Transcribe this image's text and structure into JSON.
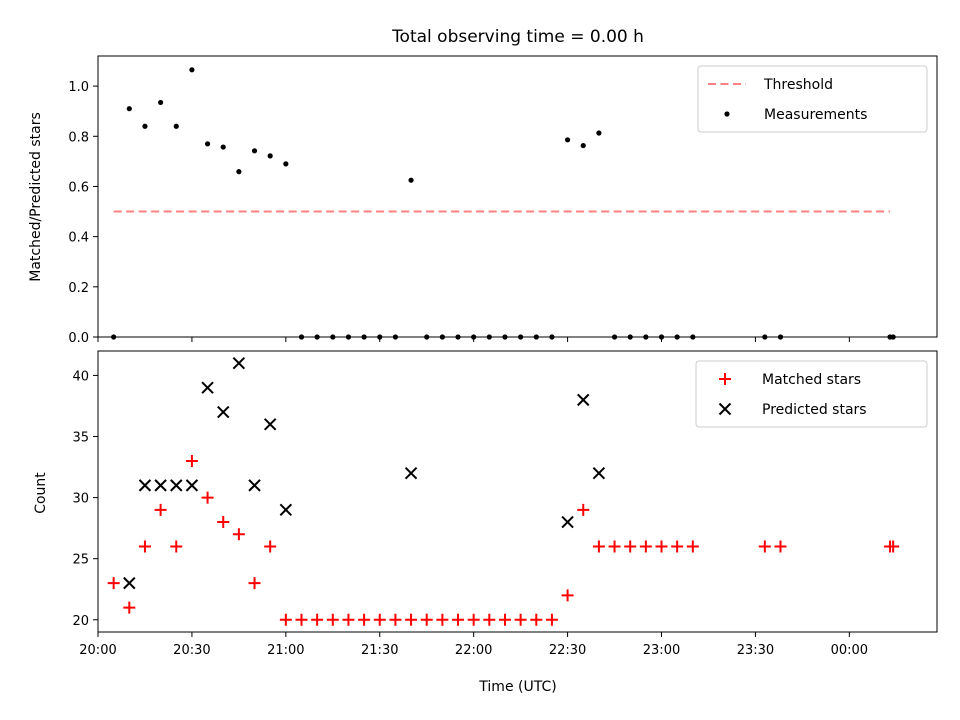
{
  "chart_data": [
    {
      "type": "scatter",
      "title": "Total observing time = 0.00 h",
      "xlabel": "",
      "ylabel": "Matched/Predicted stars",
      "xlim": [
        "20:00",
        "00:28"
      ],
      "ylim": [
        0,
        1.12
      ],
      "yticks": [
        0.0,
        0.2,
        0.4,
        0.6,
        0.8,
        1.0
      ],
      "ytick_labels": [
        "0.0",
        "0.2",
        "0.4",
        "0.6",
        "0.8",
        "1.0"
      ],
      "legend": {
        "placement": "upper right"
      },
      "threshold": {
        "name": "Threshold",
        "value": 0.5,
        "x_start": "20:05",
        "x_end": "00:13",
        "color": "#ff8080",
        "style": "dashed"
      },
      "series": [
        {
          "name": "Measurements",
          "marker": "dot",
          "color": "#000000",
          "points": [
            [
              "20:05",
              0.0
            ],
            [
              "20:10",
              0.91
            ],
            [
              "20:15",
              0.84
            ],
            [
              "20:20",
              0.935
            ],
            [
              "20:25",
              0.84
            ],
            [
              "20:30",
              1.065
            ],
            [
              "20:35",
              0.77
            ],
            [
              "20:40",
              0.757
            ],
            [
              "20:45",
              0.659
            ],
            [
              "20:50",
              0.742
            ],
            [
              "20:55",
              0.722
            ],
            [
              "21:00",
              0.69
            ],
            [
              "21:05",
              0.0
            ],
            [
              "21:10",
              0.0
            ],
            [
              "21:15",
              0.0
            ],
            [
              "21:20",
              0.0
            ],
            [
              "21:25",
              0.0
            ],
            [
              "21:30",
              0.0
            ],
            [
              "21:35",
              0.0
            ],
            [
              "21:40",
              0.625
            ],
            [
              "21:45",
              0.0
            ],
            [
              "21:50",
              0.0
            ],
            [
              "21:55",
              0.0
            ],
            [
              "22:00",
              0.0
            ],
            [
              "22:05",
              0.0
            ],
            [
              "22:10",
              0.0
            ],
            [
              "22:15",
              0.0
            ],
            [
              "22:20",
              0.0
            ],
            [
              "22:25",
              0.0
            ],
            [
              "22:30",
              0.786
            ],
            [
              "22:35",
              0.763
            ],
            [
              "22:40",
              0.813
            ],
            [
              "22:45",
              0.0
            ],
            [
              "22:50",
              0.0
            ],
            [
              "22:55",
              0.0
            ],
            [
              "23:00",
              0.0
            ],
            [
              "23:05",
              0.0
            ],
            [
              "23:10",
              0.0
            ],
            [
              "23:33",
              0.0
            ],
            [
              "23:38",
              0.0
            ],
            [
              "00:13",
              0.0
            ],
            [
              "00:14",
              0.0
            ]
          ]
        }
      ]
    },
    {
      "type": "scatter",
      "title": "",
      "xlabel": "Time (UTC)",
      "ylabel": "Count",
      "xlim": [
        "20:00",
        "00:28"
      ],
      "ylim": [
        19,
        42
      ],
      "yticks": [
        20,
        25,
        30,
        35,
        40
      ],
      "ytick_labels": [
        "20",
        "25",
        "30",
        "35",
        "40"
      ],
      "xticks": [
        "20:00",
        "20:30",
        "21:00",
        "21:30",
        "22:00",
        "22:30",
        "23:00",
        "23:30",
        "00:00"
      ],
      "legend": {
        "placement": "upper right"
      },
      "series": [
        {
          "name": "Matched stars",
          "marker": "plus",
          "color": "#ff0000",
          "points": [
            [
              "20:05",
              23
            ],
            [
              "20:10",
              21
            ],
            [
              "20:15",
              26
            ],
            [
              "20:20",
              29
            ],
            [
              "20:25",
              26
            ],
            [
              "20:30",
              33
            ],
            [
              "20:35",
              30
            ],
            [
              "20:40",
              28
            ],
            [
              "20:45",
              27
            ],
            [
              "20:50",
              23
            ],
            [
              "20:55",
              26
            ],
            [
              "21:00",
              20
            ],
            [
              "21:05",
              20
            ],
            [
              "21:10",
              20
            ],
            [
              "21:15",
              20
            ],
            [
              "21:20",
              20
            ],
            [
              "21:25",
              20
            ],
            [
              "21:30",
              20
            ],
            [
              "21:35",
              20
            ],
            [
              "21:40",
              20
            ],
            [
              "21:45",
              20
            ],
            [
              "21:50",
              20
            ],
            [
              "21:55",
              20
            ],
            [
              "22:00",
              20
            ],
            [
              "22:05",
              20
            ],
            [
              "22:10",
              20
            ],
            [
              "22:15",
              20
            ],
            [
              "22:20",
              20
            ],
            [
              "22:25",
              20
            ],
            [
              "22:30",
              22
            ],
            [
              "22:35",
              29
            ],
            [
              "22:40",
              26
            ],
            [
              "22:45",
              26
            ],
            [
              "22:50",
              26
            ],
            [
              "22:55",
              26
            ],
            [
              "23:00",
              26
            ],
            [
              "23:05",
              26
            ],
            [
              "23:10",
              26
            ],
            [
              "23:33",
              26
            ],
            [
              "23:38",
              26
            ],
            [
              "00:13",
              26
            ],
            [
              "00:14",
              26
            ]
          ]
        },
        {
          "name": "Predicted stars",
          "marker": "x",
          "color": "#000000",
          "points": [
            [
              "20:10",
              23
            ],
            [
              "20:15",
              31
            ],
            [
              "20:20",
              31
            ],
            [
              "20:25",
              31
            ],
            [
              "20:30",
              31
            ],
            [
              "20:35",
              39
            ],
            [
              "20:40",
              37
            ],
            [
              "20:45",
              41
            ],
            [
              "20:50",
              31
            ],
            [
              "20:55",
              36
            ],
            [
              "21:00",
              29
            ],
            [
              "21:40",
              32
            ],
            [
              "22:30",
              28
            ],
            [
              "22:35",
              38
            ],
            [
              "22:40",
              32
            ]
          ]
        }
      ]
    }
  ]
}
